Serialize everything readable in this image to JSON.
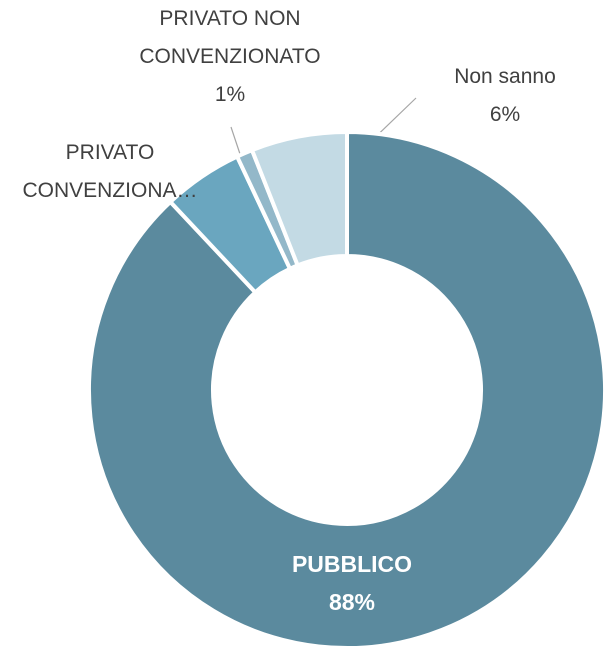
{
  "chart_data": {
    "type": "donut",
    "categories": [
      "PUBBLICO",
      "PRIVATO CONVENZIONA…",
      "PRIVATO NON CONVENZIONATO",
      "Non sanno"
    ],
    "values": [
      88,
      5,
      1,
      6
    ],
    "value_labels": [
      "88%",
      null,
      "1%",
      "6%"
    ],
    "colors": [
      "#5b8a9e",
      "#6aa6bf",
      "#93b8c9",
      "#c3dae4"
    ]
  }
}
